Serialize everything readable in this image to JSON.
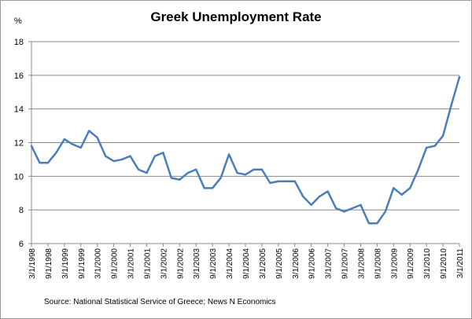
{
  "chart_data": {
    "type": "line",
    "title": "Greek Unemployment Rate",
    "ylabel": "%",
    "ylim": [
      6,
      18
    ],
    "yticks": [
      "6",
      "8",
      "10",
      "12",
      "14",
      "16",
      "18"
    ],
    "grid": true,
    "color": "#4a7ebb",
    "x_labels": [
      "3/1/1998",
      "9/1/1998",
      "3/1/1999",
      "9/1/1999",
      "3/1/2000",
      "9/1/2000",
      "3/1/2001",
      "9/1/2001",
      "3/1/2002",
      "9/1/2002",
      "3/1/2003",
      "9/1/2003",
      "3/1/2004",
      "9/1/2004",
      "3/1/2005",
      "9/1/2005",
      "3/1/2006",
      "9/1/2006",
      "3/1/2007",
      "9/1/2007",
      "3/1/2008",
      "9/1/2008",
      "3/1/2009",
      "9/1/2009",
      "3/1/2010",
      "9/1/2010",
      "3/1/2011"
    ],
    "values": [
      11.8,
      10.8,
      10.8,
      11.4,
      12.2,
      11.9,
      11.7,
      12.7,
      12.3,
      11.2,
      10.9,
      11.0,
      11.2,
      10.4,
      10.2,
      11.2,
      11.4,
      9.9,
      9.8,
      10.2,
      10.4,
      9.3,
      9.3,
      9.9,
      11.3,
      10.2,
      10.1,
      10.4,
      10.4,
      9.6,
      9.7,
      9.7,
      9.7,
      8.8,
      8.3,
      8.8,
      9.1,
      8.1,
      7.9,
      8.1,
      8.3,
      7.2,
      7.2,
      7.9,
      9.3,
      8.9,
      9.3,
      10.4,
      11.7,
      11.8,
      12.4,
      14.2,
      15.9
    ]
  },
  "source": "Source:  National Statistical Service of Greece; News N Economics"
}
